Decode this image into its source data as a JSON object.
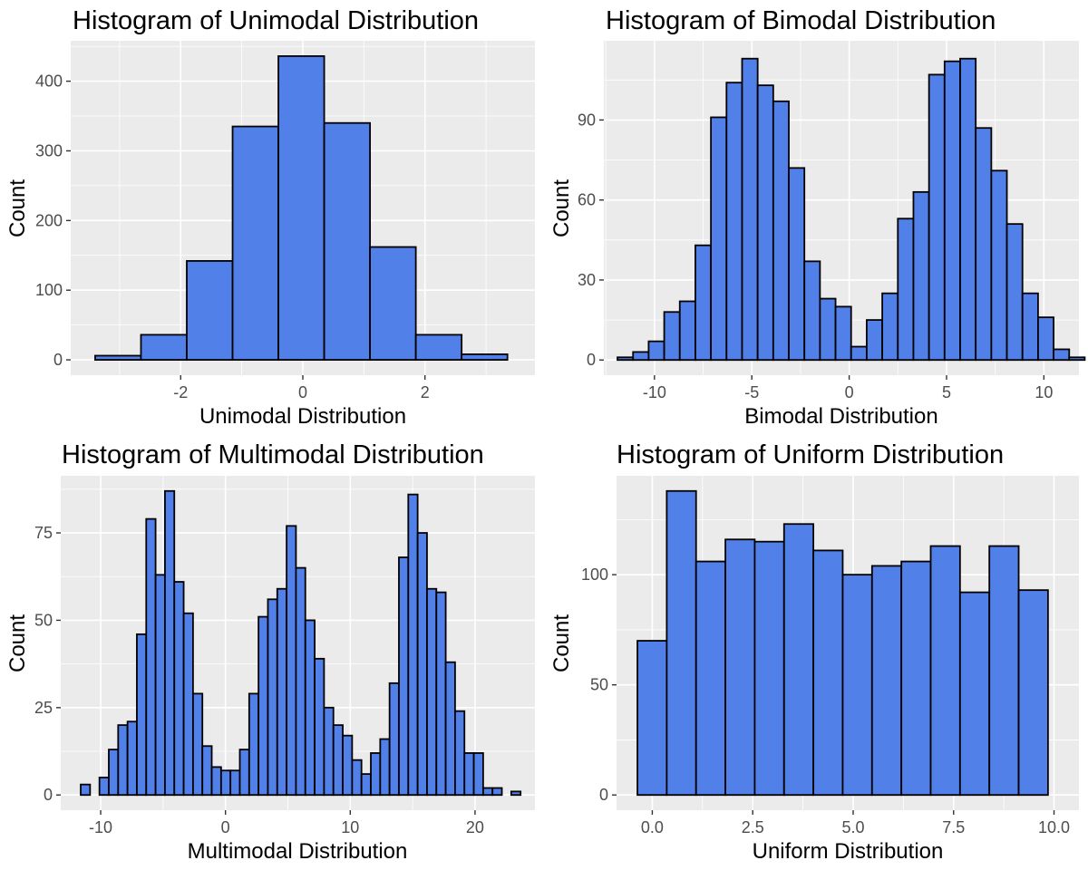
{
  "chart_data": [
    {
      "type": "bar",
      "title": "Histogram of Unimodal Distribution",
      "xlabel": "Unimodal Distribution",
      "ylabel": "Count",
      "xlim": [
        -3.8,
        3.8
      ],
      "ylim": [
        -22,
        458
      ],
      "x_ticks": [
        -2,
        0,
        2
      ],
      "x_tick_labels": [
        "-2",
        "0",
        "2"
      ],
      "y_ticks": [
        0,
        100,
        200,
        300,
        400
      ],
      "y_tick_labels": [
        "0",
        "100",
        "200",
        "300",
        "400"
      ],
      "bin_width": 0.75,
      "bins": [
        {
          "x0": -3.4,
          "x1": -2.65,
          "count": 6
        },
        {
          "x0": -2.65,
          "x1": -1.9,
          "count": 36
        },
        {
          "x0": -1.9,
          "x1": -1.15,
          "count": 142
        },
        {
          "x0": -1.15,
          "x1": -0.4,
          "count": 335
        },
        {
          "x0": -0.4,
          "x1": 0.35,
          "count": 436
        },
        {
          "x0": 0.35,
          "x1": 1.1,
          "count": 340
        },
        {
          "x0": 1.1,
          "x1": 1.85,
          "count": 162
        },
        {
          "x0": 1.85,
          "x1": 2.6,
          "count": 36
        },
        {
          "x0": 2.6,
          "x1": 3.35,
          "count": 8
        }
      ],
      "grid": true,
      "fill_color": "#5180E9",
      "stroke_color": "#000000",
      "panel_bg": "#EBEBEB",
      "grid_color": "#FFFFFF"
    },
    {
      "type": "bar",
      "title": "Histogram of Bimodal Distribution",
      "xlabel": "Bimodal Distribution",
      "ylabel": "Count",
      "xlim": [
        -12.6,
        11.8
      ],
      "ylim": [
        -5.7,
        119.7
      ],
      "x_ticks": [
        -10,
        -5,
        0,
        5,
        10
      ],
      "x_tick_labels": [
        "-10",
        "-5",
        "0",
        "5",
        "10"
      ],
      "y_ticks": [
        0,
        30,
        60,
        90
      ],
      "y_tick_labels": [
        "0",
        "30",
        "60",
        "90"
      ],
      "bin_width": 0.8,
      "bins": [
        {
          "x0": -11.9,
          "x1": -11.1,
          "count": 1
        },
        {
          "x0": -11.1,
          "x1": -10.3,
          "count": 3
        },
        {
          "x0": -10.3,
          "x1": -9.5,
          "count": 7
        },
        {
          "x0": -9.5,
          "x1": -8.7,
          "count": 18
        },
        {
          "x0": -8.7,
          "x1": -7.9,
          "count": 22
        },
        {
          "x0": -7.9,
          "x1": -7.1,
          "count": 43
        },
        {
          "x0": -7.1,
          "x1": -6.3,
          "count": 91
        },
        {
          "x0": -6.3,
          "x1": -5.5,
          "count": 104
        },
        {
          "x0": -5.5,
          "x1": -4.7,
          "count": 113
        },
        {
          "x0": -4.7,
          "x1": -3.9,
          "count": 103
        },
        {
          "x0": -3.9,
          "x1": -3.1,
          "count": 97
        },
        {
          "x0": -3.1,
          "x1": -2.3,
          "count": 72
        },
        {
          "x0": -2.3,
          "x1": -1.5,
          "count": 37
        },
        {
          "x0": -1.5,
          "x1": -0.7,
          "count": 23
        },
        {
          "x0": -0.7,
          "x1": 0.1,
          "count": 20
        },
        {
          "x0": 0.1,
          "x1": 0.9,
          "count": 5
        },
        {
          "x0": 0.9,
          "x1": 1.7,
          "count": 15
        },
        {
          "x0": 1.7,
          "x1": 2.5,
          "count": 25
        },
        {
          "x0": 2.5,
          "x1": 3.3,
          "count": 53
        },
        {
          "x0": 3.3,
          "x1": 4.1,
          "count": 63
        },
        {
          "x0": 4.1,
          "x1": 4.9,
          "count": 107
        },
        {
          "x0": 4.9,
          "x1": 5.7,
          "count": 112
        },
        {
          "x0": 5.7,
          "x1": 6.5,
          "count": 113
        },
        {
          "x0": 6.5,
          "x1": 7.3,
          "count": 87
        },
        {
          "x0": 7.3,
          "x1": 8.1,
          "count": 71
        },
        {
          "x0": 8.1,
          "x1": 8.9,
          "count": 51
        },
        {
          "x0": 8.9,
          "x1": 9.7,
          "count": 25
        },
        {
          "x0": 9.7,
          "x1": 10.5,
          "count": 16
        },
        {
          "x0": 10.5,
          "x1": 11.3,
          "count": 4
        },
        {
          "x0": 11.3,
          "x1": 12.1,
          "count": 1
        }
      ],
      "grid": true,
      "fill_color": "#5180E9",
      "stroke_color": "#000000",
      "panel_bg": "#EBEBEB",
      "grid_color": "#FFFFFF"
    },
    {
      "type": "bar",
      "title": "Histogram of Multimodal Distribution",
      "xlabel": "Multimodal Distribution",
      "ylabel": "Count",
      "xlim": [
        -13.2,
        24.8
      ],
      "ylim": [
        -4.35,
        91.35
      ],
      "x_ticks": [
        -10,
        0,
        10,
        20
      ],
      "x_tick_labels": [
        "-10",
        "0",
        "10",
        "20"
      ],
      "y_ticks": [
        0,
        25,
        50,
        75
      ],
      "y_tick_labels": [
        "0",
        "25",
        "50",
        "75"
      ],
      "bin_width": 0.75,
      "bins": [
        {
          "x0": -11.6,
          "x1": -10.85,
          "count": 3
        },
        {
          "x0": -10.85,
          "x1": -10.1,
          "count": 0
        },
        {
          "x0": -10.1,
          "x1": -9.35,
          "count": 5
        },
        {
          "x0": -9.35,
          "x1": -8.6,
          "count": 13
        },
        {
          "x0": -8.6,
          "x1": -7.85,
          "count": 20
        },
        {
          "x0": -7.85,
          "x1": -7.1,
          "count": 21
        },
        {
          "x0": -7.1,
          "x1": -6.35,
          "count": 46
        },
        {
          "x0": -6.35,
          "x1": -5.6,
          "count": 79
        },
        {
          "x0": -5.6,
          "x1": -4.85,
          "count": 63
        },
        {
          "x0": -4.85,
          "x1": -4.1,
          "count": 87
        },
        {
          "x0": -4.1,
          "x1": -3.35,
          "count": 61
        },
        {
          "x0": -3.35,
          "x1": -2.6,
          "count": 52
        },
        {
          "x0": -2.6,
          "x1": -1.85,
          "count": 29
        },
        {
          "x0": -1.85,
          "x1": -1.1,
          "count": 14
        },
        {
          "x0": -1.1,
          "x1": -0.35,
          "count": 8
        },
        {
          "x0": -0.35,
          "x1": 0.4,
          "count": 7
        },
        {
          "x0": 0.4,
          "x1": 1.15,
          "count": 7
        },
        {
          "x0": 1.15,
          "x1": 1.9,
          "count": 13
        },
        {
          "x0": 1.9,
          "x1": 2.65,
          "count": 29
        },
        {
          "x0": 2.65,
          "x1": 3.4,
          "count": 51
        },
        {
          "x0": 3.4,
          "x1": 4.15,
          "count": 56
        },
        {
          "x0": 4.15,
          "x1": 4.9,
          "count": 59
        },
        {
          "x0": 4.9,
          "x1": 5.65,
          "count": 77
        },
        {
          "x0": 5.65,
          "x1": 6.4,
          "count": 65
        },
        {
          "x0": 6.4,
          "x1": 7.15,
          "count": 50
        },
        {
          "x0": 7.15,
          "x1": 7.9,
          "count": 39
        },
        {
          "x0": 7.9,
          "x1": 8.65,
          "count": 25
        },
        {
          "x0": 8.65,
          "x1": 9.4,
          "count": 20
        },
        {
          "x0": 9.4,
          "x1": 10.15,
          "count": 17
        },
        {
          "x0": 10.15,
          "x1": 10.9,
          "count": 10
        },
        {
          "x0": 10.9,
          "x1": 11.65,
          "count": 6
        },
        {
          "x0": 11.65,
          "x1": 12.4,
          "count": 12
        },
        {
          "x0": 12.4,
          "x1": 13.15,
          "count": 16
        },
        {
          "x0": 13.15,
          "x1": 13.9,
          "count": 32
        },
        {
          "x0": 13.9,
          "x1": 14.65,
          "count": 68
        },
        {
          "x0": 14.65,
          "x1": 15.4,
          "count": 86
        },
        {
          "x0": 15.4,
          "x1": 16.15,
          "count": 75
        },
        {
          "x0": 16.15,
          "x1": 16.9,
          "count": 59
        },
        {
          "x0": 16.9,
          "x1": 17.65,
          "count": 58
        },
        {
          "x0": 17.65,
          "x1": 18.4,
          "count": 38
        },
        {
          "x0": 18.4,
          "x1": 19.15,
          "count": 24
        },
        {
          "x0": 19.15,
          "x1": 19.9,
          "count": 12
        },
        {
          "x0": 19.9,
          "x1": 20.65,
          "count": 12
        },
        {
          "x0": 20.65,
          "x1": 21.4,
          "count": 2
        },
        {
          "x0": 21.4,
          "x1": 22.15,
          "count": 2
        },
        {
          "x0": 22.15,
          "x1": 22.9,
          "count": 0
        },
        {
          "x0": 22.9,
          "x1": 23.65,
          "count": 1
        }
      ],
      "grid": true,
      "fill_color": "#5180E9",
      "stroke_color": "#000000",
      "panel_bg": "#EBEBEB",
      "grid_color": "#FFFFFF"
    },
    {
      "type": "bar",
      "title": "Histogram of Uniform Distribution",
      "xlabel": "Uniform Distribution",
      "ylabel": "Count",
      "xlim": [
        -0.89,
        10.62
      ],
      "ylim": [
        -6.9,
        144.9
      ],
      "x_ticks": [
        0,
        2.5,
        5,
        7.5,
        10
      ],
      "x_tick_labels": [
        "0.0",
        "2.5",
        "5.0",
        "7.5",
        "10.0"
      ],
      "y_ticks": [
        0,
        50,
        100
      ],
      "y_tick_labels": [
        "0",
        "50",
        "100"
      ],
      "bin_width": 0.73,
      "bins": [
        {
          "x0": -0.37,
          "x1": 0.36,
          "count": 70
        },
        {
          "x0": 0.36,
          "x1": 1.09,
          "count": 138
        },
        {
          "x0": 1.09,
          "x1": 1.82,
          "count": 106
        },
        {
          "x0": 1.82,
          "x1": 2.55,
          "count": 116
        },
        {
          "x0": 2.55,
          "x1": 3.28,
          "count": 115
        },
        {
          "x0": 3.28,
          "x1": 4.01,
          "count": 123
        },
        {
          "x0": 4.01,
          "x1": 4.74,
          "count": 111
        },
        {
          "x0": 4.74,
          "x1": 5.47,
          "count": 100
        },
        {
          "x0": 5.47,
          "x1": 6.2,
          "count": 104
        },
        {
          "x0": 6.2,
          "x1": 6.93,
          "count": 106
        },
        {
          "x0": 6.93,
          "x1": 7.66,
          "count": 113
        },
        {
          "x0": 7.66,
          "x1": 8.39,
          "count": 92
        },
        {
          "x0": 8.39,
          "x1": 9.12,
          "count": 113
        },
        {
          "x0": 9.12,
          "x1": 9.85,
          "count": 93
        }
      ],
      "grid": true,
      "fill_color": "#5180E9",
      "stroke_color": "#000000",
      "panel_bg": "#EBEBEB",
      "grid_color": "#FFFFFF"
    }
  ]
}
